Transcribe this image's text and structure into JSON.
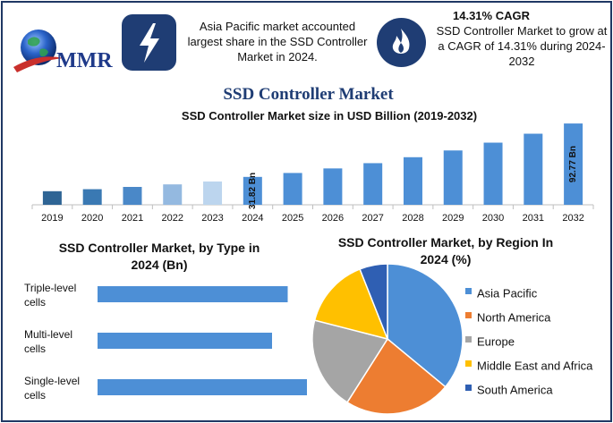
{
  "brand": {
    "logo_text": "MMR"
  },
  "info": {
    "left_text": "Asia Pacific market accounted largest share in the SSD Controller Market in 2024.",
    "right_heading": "14.31% CAGR",
    "right_text": "SSD Controller Market to grow at a CAGR of 14.31% during 2024-2032"
  },
  "main_title": "SSD Controller Market",
  "colors": {
    "navy": "#1f3d74",
    "bar_dark": "#2e6494",
    "bar_main": "#4d8fd6"
  },
  "chart_data": [
    {
      "type": "bar",
      "title": "SSD Controller Market size in USD Billion (2019-2032)",
      "categories": [
        "2019",
        "2020",
        "2021",
        "2022",
        "2023",
        "2024",
        "2025",
        "2026",
        "2027",
        "2028",
        "2029",
        "2030",
        "2031",
        "2032"
      ],
      "values": [
        15.5,
        17.8,
        20.4,
        23.3,
        26.6,
        31.82,
        36.3,
        41.5,
        47.5,
        54.3,
        62.0,
        70.9,
        81.1,
        92.77
      ],
      "colors": [
        "#2e6494",
        "#3a79b3",
        "#4a88c8",
        "#94b9e0",
        "#bcd5ee",
        "#4d8fd6",
        "#4d8fd6",
        "#4d8fd6",
        "#4d8fd6",
        "#4d8fd6",
        "#4d8fd6",
        "#4d8fd6",
        "#4d8fd6",
        "#4d8fd6"
      ],
      "data_labels": [
        {
          "index": 5,
          "text": "31.82 Bn"
        },
        {
          "index": 13,
          "text": "92.77 Bn"
        }
      ],
      "ylim": [
        0,
        100
      ]
    },
    {
      "type": "bar",
      "orientation": "horizontal",
      "title": "SSD Controller Market, by Type in 2024 (Bn)",
      "categories": [
        "Triple-level cells",
        "Multi-level cells",
        "Single-level cells"
      ],
      "values": [
        8.5,
        7.8,
        10.8
      ],
      "xlim": [
        0,
        12
      ],
      "color": "#4d8fd6"
    },
    {
      "type": "pie",
      "title": "SSD Controller Market, by Region In 2024 (%)",
      "labels": [
        "Asia Pacific",
        "North America",
        "Europe",
        "Middle East and Africa",
        "South America"
      ],
      "values": [
        36,
        23,
        20,
        15,
        6
      ],
      "colors": [
        "#4d8fd6",
        "#ed7d31",
        "#a5a5a5",
        "#ffc000",
        "#2f5fb3"
      ],
      "legend": "right"
    }
  ]
}
